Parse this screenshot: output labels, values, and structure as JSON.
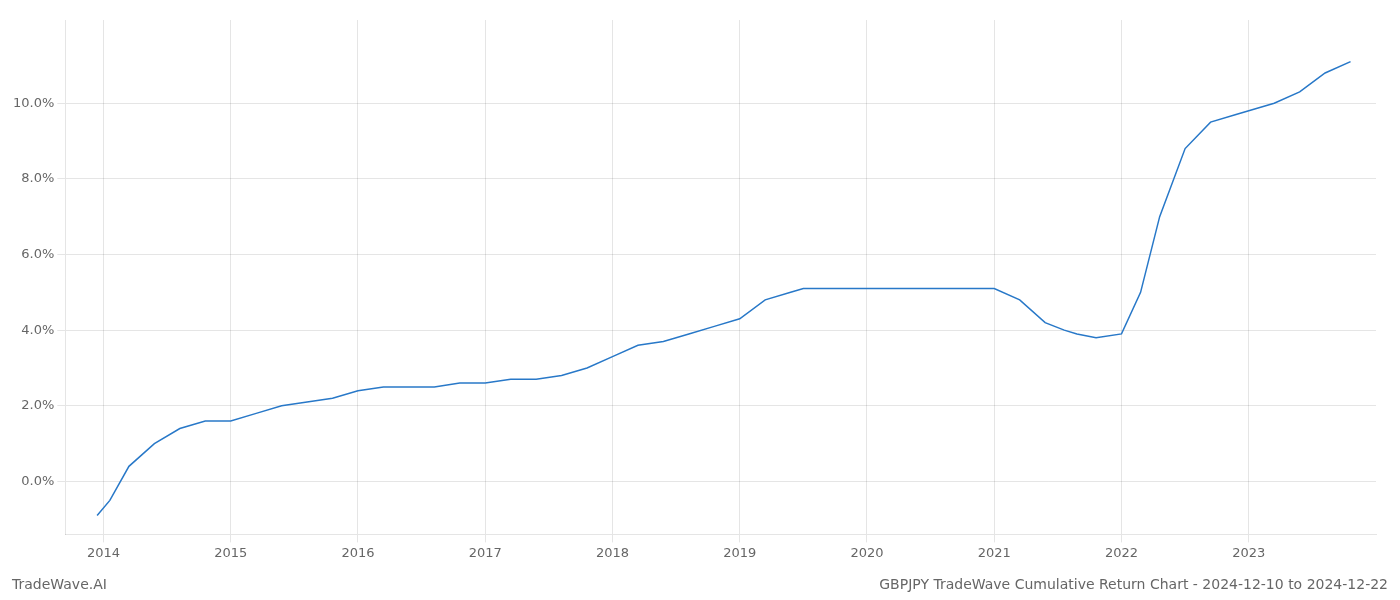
{
  "chart_data": {
    "type": "line",
    "title": "GBPJPY TradeWave Cumulative Return Chart - 2024-12-10 to 2024-12-22",
    "annotations": [
      "TradeWave.AI"
    ],
    "x": [
      2013.95,
      2014.05,
      2014.2,
      2014.4,
      2014.6,
      2014.8,
      2015.0,
      2015.2,
      2015.4,
      2015.6,
      2015.8,
      2016.0,
      2016.2,
      2016.4,
      2016.6,
      2016.8,
      2017.0,
      2017.2,
      2017.4,
      2017.6,
      2017.8,
      2018.0,
      2018.2,
      2018.4,
      2018.6,
      2018.8,
      2019.0,
      2019.2,
      2019.4,
      2019.5,
      2019.6,
      2019.8,
      2020.0,
      2020.2,
      2020.4,
      2020.6,
      2020.8,
      2021.0,
      2021.2,
      2021.4,
      2021.55,
      2021.65,
      2021.8,
      2022.0,
      2022.15,
      2022.3,
      2022.5,
      2022.7,
      2022.9,
      2023.0,
      2023.2,
      2023.4,
      2023.6,
      2023.8
    ],
    "values": [
      -0.009,
      -0.005,
      0.004,
      0.01,
      0.014,
      0.016,
      0.016,
      0.018,
      0.02,
      0.021,
      0.022,
      0.024,
      0.025,
      0.025,
      0.025,
      0.026,
      0.026,
      0.027,
      0.027,
      0.028,
      0.03,
      0.033,
      0.036,
      0.037,
      0.039,
      0.041,
      0.043,
      0.048,
      0.05,
      0.051,
      0.051,
      0.051,
      0.051,
      0.051,
      0.051,
      0.051,
      0.051,
      0.051,
      0.048,
      0.042,
      0.04,
      0.039,
      0.038,
      0.039,
      0.05,
      0.07,
      0.088,
      0.095,
      0.097,
      0.098,
      0.1,
      0.103,
      0.108,
      0.111
    ],
    "color": "#2878c8",
    "xlim": [
      2013.7,
      2024.0
    ],
    "ylim": [
      -0.014,
      0.122
    ],
    "xticks": [
      2014,
      2015,
      2016,
      2017,
      2018,
      2019,
      2020,
      2021,
      2022,
      2023
    ],
    "yticks": [
      {
        "value": 0,
        "label": "0.0%"
      },
      {
        "value": 0.02,
        "label": "2.0%"
      },
      {
        "value": 0.04,
        "label": "4.0%"
      },
      {
        "value": 0.06,
        "label": "6.0%"
      },
      {
        "value": 0.08,
        "label": "8.0%"
      },
      {
        "value": 0.1,
        "label": "10.0%"
      }
    ],
    "grid": true
  }
}
